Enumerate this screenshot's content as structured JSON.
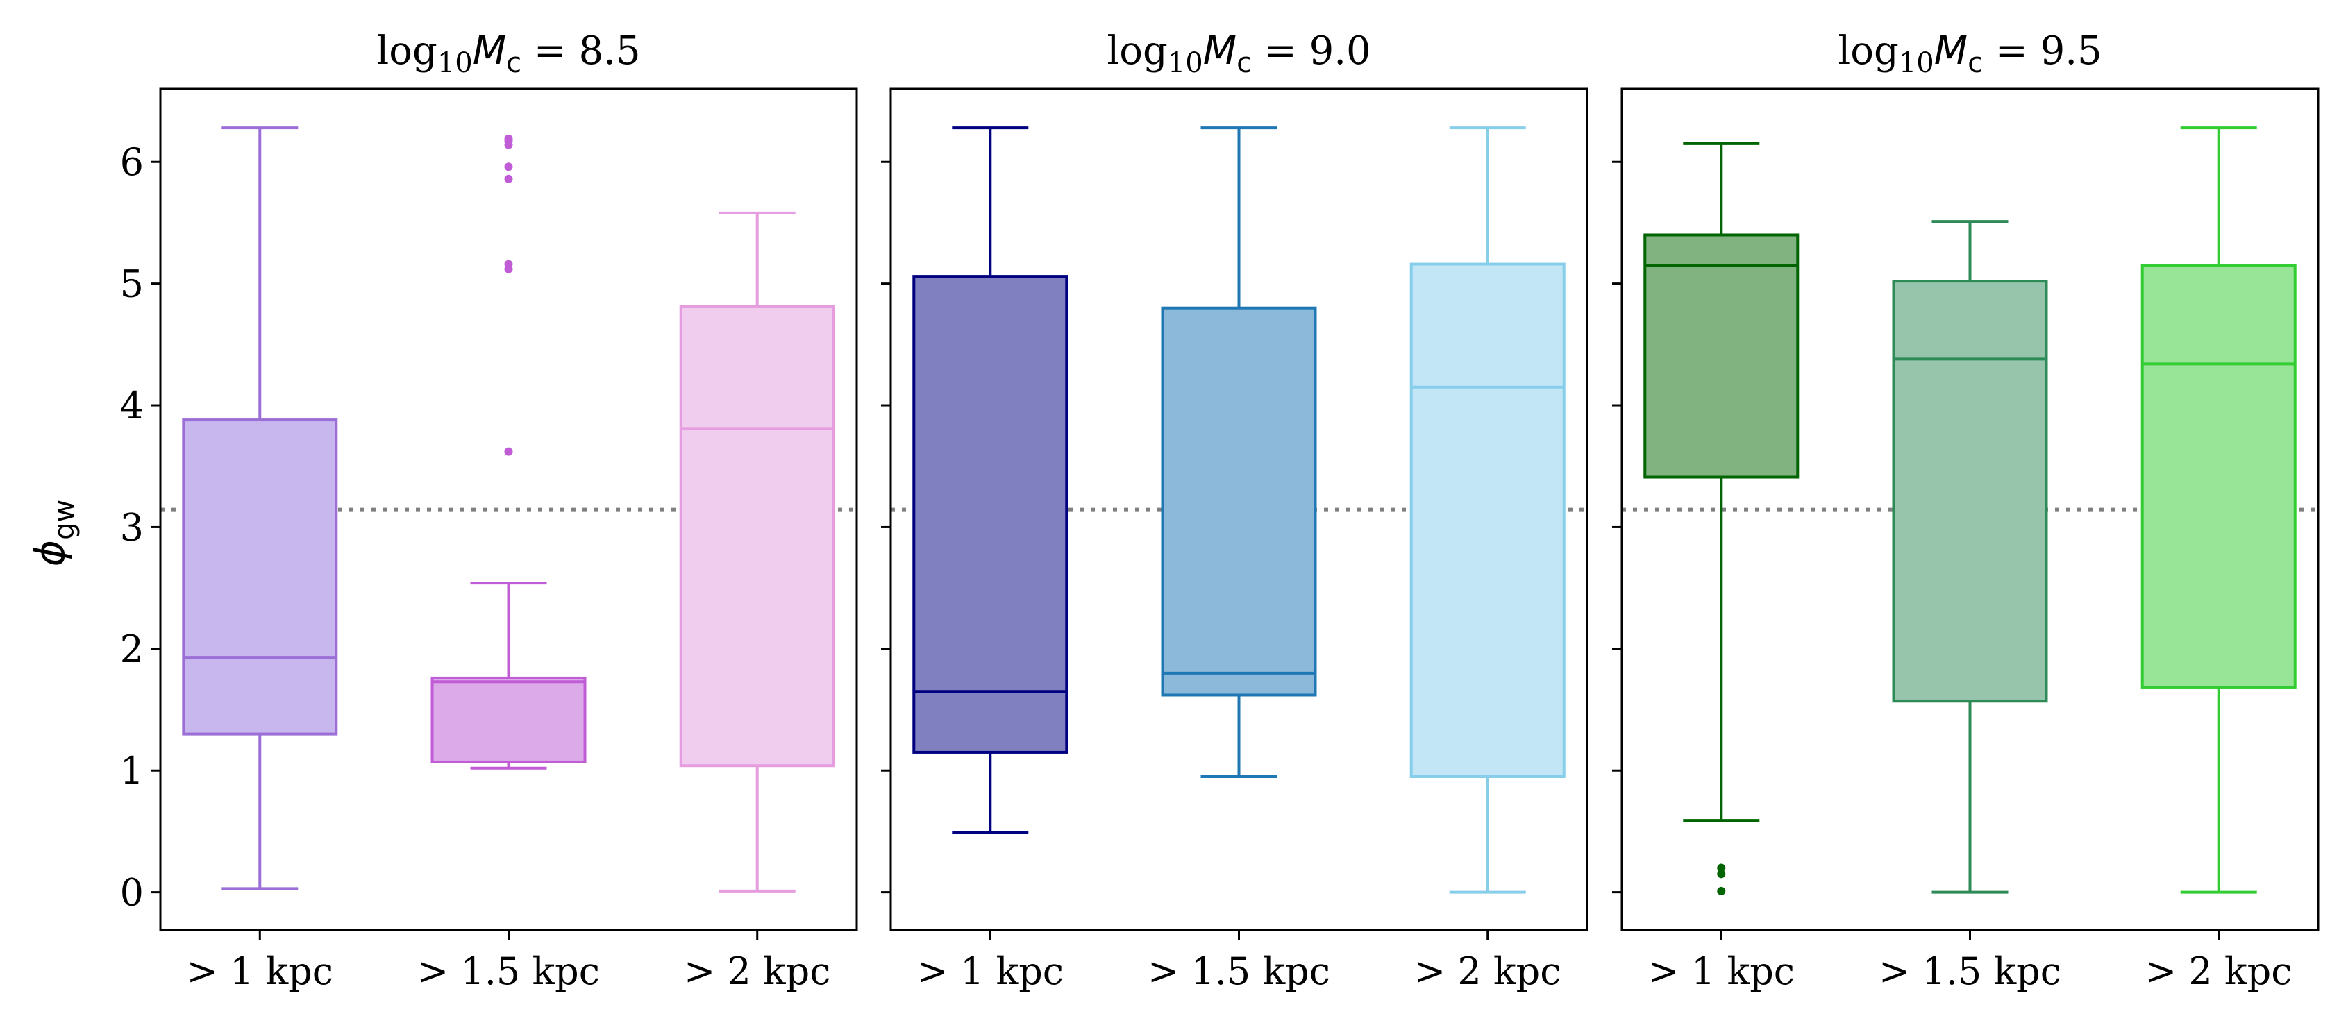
{
  "figure": {
    "ylabel": "ϕgw",
    "ylabel_symbol": "ϕ",
    "ylabel_subscript": "gw"
  },
  "chart_data": [
    {
      "type": "box",
      "title": "log10Mc = 8.5",
      "title_parts": {
        "log": "log",
        "log_sub": "10",
        "var": "M",
        "var_sub": "c",
        "value": " = 8.5"
      },
      "categories": [
        "> 1 kpc",
        "> 1.5 kpc",
        "> 2 kpc"
      ],
      "yticks": [
        0,
        1,
        2,
        3,
        4,
        5,
        6
      ],
      "ylim": [
        -0.31,
        6.6
      ],
      "reference_line": 3.1416,
      "show_yticklabels": true,
      "boxes": [
        {
          "whisker_low": 0.03,
          "q1": 1.3,
          "median": 1.93,
          "q3": 3.88,
          "whisker_high": 6.28,
          "outliers": [],
          "face": "#c8b6ee",
          "edge": "#9b6fd6"
        },
        {
          "whisker_low": 1.02,
          "q1": 1.07,
          "median": 1.73,
          "q3": 1.76,
          "whisker_high": 2.54,
          "outliers": [
            3.62,
            5.12,
            5.16,
            5.86,
            5.96,
            6.14,
            6.17,
            6.19
          ],
          "face": "#dcaae8",
          "edge": "#c05cd6"
        },
        {
          "whisker_low": 0.01,
          "q1": 1.04,
          "median": 3.81,
          "q3": 4.81,
          "whisker_high": 5.58,
          "outliers": [],
          "face": "#f0ccee",
          "edge": "#e59de0"
        }
      ]
    },
    {
      "type": "box",
      "title": "log10Mc = 9.0",
      "title_parts": {
        "log": "log",
        "log_sub": "10",
        "var": "M",
        "var_sub": "c",
        "value": " = 9.0"
      },
      "categories": [
        "> 1 kpc",
        "> 1.5 kpc",
        "> 2 kpc"
      ],
      "yticks": [
        0,
        1,
        2,
        3,
        4,
        5,
        6
      ],
      "ylim": [
        -0.31,
        6.6
      ],
      "reference_line": 3.1416,
      "show_yticklabels": false,
      "boxes": [
        {
          "whisker_low": 0.49,
          "q1": 1.15,
          "median": 1.65,
          "q3": 5.06,
          "whisker_high": 6.28,
          "outliers": [],
          "face": "#8080c0",
          "edge": "#000080"
        },
        {
          "whisker_low": 0.95,
          "q1": 1.62,
          "median": 1.8,
          "q3": 4.8,
          "whisker_high": 6.28,
          "outliers": [],
          "face": "#8cb8d9",
          "edge": "#1f77b4"
        },
        {
          "whisker_low": 0.0,
          "q1": 0.95,
          "median": 4.15,
          "q3": 5.16,
          "whisker_high": 6.28,
          "outliers": [],
          "face": "#c2e6f6",
          "edge": "#87ceeb"
        }
      ]
    },
    {
      "type": "box",
      "title": "log10Mc = 9.5",
      "title_parts": {
        "log": "log",
        "log_sub": "10",
        "var": "M",
        "var_sub": "c",
        "value": " = 9.5"
      },
      "categories": [
        "> 1 kpc",
        "> 1.5 kpc",
        "> 2 kpc"
      ],
      "yticks": [
        0,
        1,
        2,
        3,
        4,
        5,
        6
      ],
      "ylim": [
        -0.31,
        6.6
      ],
      "reference_line": 3.1416,
      "show_yticklabels": false,
      "boxes": [
        {
          "whisker_low": 0.59,
          "q1": 3.41,
          "median": 5.15,
          "q3": 5.4,
          "whisker_high": 6.15,
          "outliers": [
            0.01,
            0.15,
            0.2
          ],
          "face": "#80b380",
          "edge": "#006400"
        },
        {
          "whisker_low": 0.0,
          "q1": 1.57,
          "median": 4.38,
          "q3": 5.02,
          "whisker_high": 5.51,
          "outliers": [],
          "face": "#96c5ab",
          "edge": "#2e8b57"
        },
        {
          "whisker_low": 0.0,
          "q1": 1.68,
          "median": 4.34,
          "q3": 5.15,
          "whisker_high": 6.28,
          "outliers": [],
          "face": "#98e598",
          "edge": "#32cd32"
        }
      ]
    }
  ]
}
